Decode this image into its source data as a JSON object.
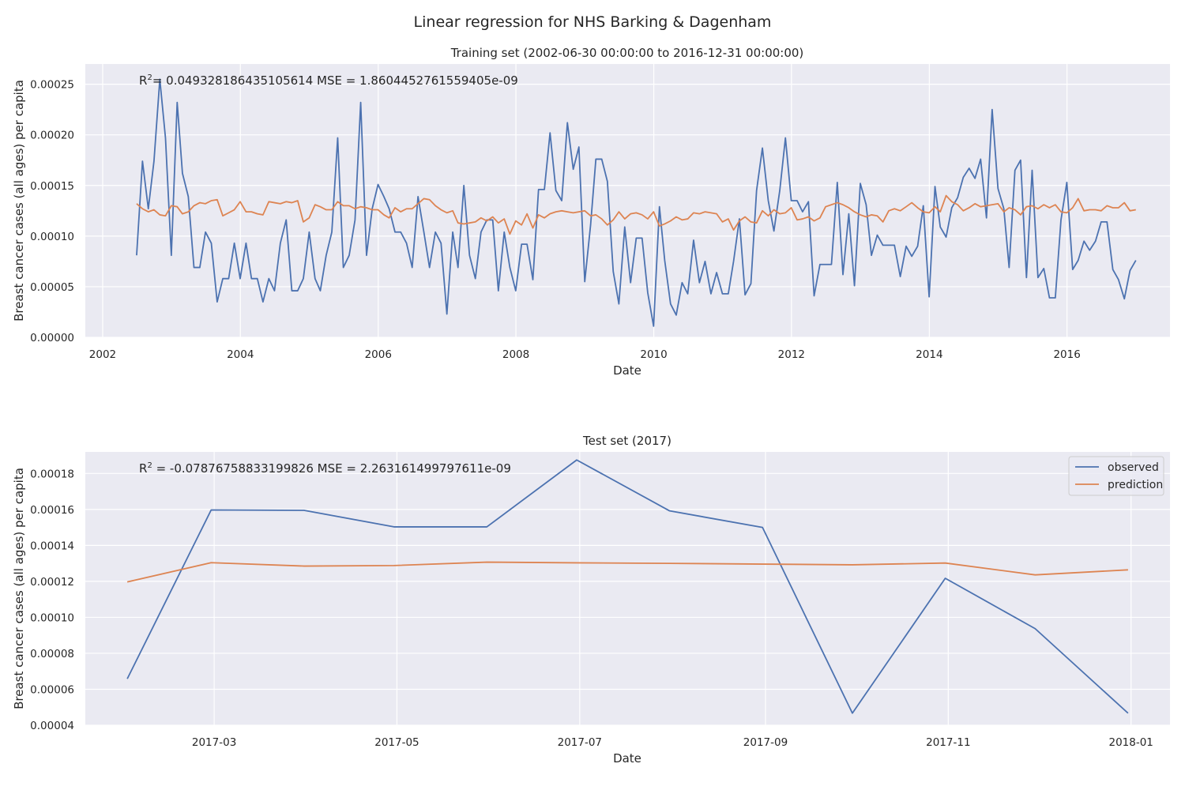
{
  "figure": {
    "suptitle": "Linear regression for NHS Barking & Dagenham"
  },
  "colors": {
    "observed": "#4c72b0",
    "prediction": "#dd8452",
    "axes_bg": "#eaeaf2",
    "grid": "#ffffff"
  },
  "chart_data": [
    {
      "type": "line",
      "title": "Training set (2002-06-30 00:00:00 to 2016-12-31 00:00:00)",
      "xlabel": "Date",
      "ylabel": "Breast cancer cases (all ages) per capita",
      "x_type": "date",
      "xlim": [
        "2001-10-01",
        "2017-06-30"
      ],
      "ylim": [
        0,
        0.00027
      ],
      "x_ticks": [
        "2002-01-01",
        "2004-01-01",
        "2006-01-01",
        "2008-01-01",
        "2010-01-01",
        "2012-01-01",
        "2014-01-01",
        "2016-01-01"
      ],
      "x_tick_labels": [
        "2002",
        "2004",
        "2006",
        "2008",
        "2010",
        "2012",
        "2014",
        "2016"
      ],
      "y_ticks": [
        0,
        5e-05,
        0.0001,
        0.00015,
        0.0002,
        0.00025
      ],
      "y_tick_labels": [
        "0.00000",
        "0.00005",
        "0.00010",
        "0.00015",
        "0.00020",
        "0.00025"
      ],
      "grid": true,
      "legend": "none",
      "annotation": {
        "r_label": "R",
        "r_sup": "2",
        "text": "= 0.049328186435105614  MSE = 1.8604452761559405e-09"
      },
      "start": "2002-06-30",
      "frequency": "monthly",
      "series": [
        {
          "name": "observed",
          "values": [
            8.1e-05,
            0.000174,
            0.000127,
            0.000174,
            0.000255,
            0.000197,
            8.1e-05,
            0.000232,
            0.000162,
            0.000139,
            6.9e-05,
            6.9e-05,
            0.000104,
            9.3e-05,
            3.5e-05,
            5.8e-05,
            5.8e-05,
            9.3e-05,
            5.8e-05,
            9.3e-05,
            5.8e-05,
            5.8e-05,
            3.5e-05,
            5.8e-05,
            4.6e-05,
            9.3e-05,
            0.000116,
            4.6e-05,
            4.6e-05,
            5.8e-05,
            0.000104,
            5.8e-05,
            4.6e-05,
            8.1e-05,
            0.000104,
            0.000197,
            6.9e-05,
            8.1e-05,
            0.000116,
            0.000232,
            8.1e-05,
            0.000127,
            0.000151,
            0.000139,
            0.000127,
            0.000104,
            0.000104,
            9.3e-05,
            6.9e-05,
            0.000139,
            0.000104,
            6.9e-05,
            0.000104,
            9.3e-05,
            2.3e-05,
            0.000104,
            6.9e-05,
            0.00015,
            8.1e-05,
            5.8e-05,
            0.000104,
            0.000116,
            0.000116,
            4.6e-05,
            0.000104,
            6.9e-05,
            4.6e-05,
            9.2e-05,
            9.2e-05,
            5.7e-05,
            0.000146,
            0.000146,
            0.000202,
            0.000145,
            0.000135,
            0.000212,
            0.000166,
            0.000188,
            5.5e-05,
            0.000111,
            0.000176,
            0.000176,
            0.000154,
            6.5e-05,
            3.3e-05,
            0.000109,
            5.4e-05,
            9.8e-05,
            9.8e-05,
            4.4e-05,
            1.1e-05,
            0.000129,
            7.6e-05,
            3.3e-05,
            2.2e-05,
            5.4e-05,
            4.3e-05,
            9.6e-05,
            5.4e-05,
            7.5e-05,
            4.3e-05,
            6.4e-05,
            4.3e-05,
            4.3e-05,
            7.5e-05,
            0.000117,
            4.2e-05,
            5.3e-05,
            0.000145,
            0.000187,
            0.000135,
            0.000105,
            0.000145,
            0.000197,
            0.000135,
            0.000135,
            0.000124,
            0.000134,
            4.1e-05,
            7.2e-05,
            7.2e-05,
            7.2e-05,
            0.000153,
            6.2e-05,
            0.000122,
            5.1e-05,
            0.000152,
            0.000131,
            8.1e-05,
            0.000101,
            9.1e-05,
            9.1e-05,
            9.1e-05,
            6e-05,
            9e-05,
            8e-05,
            9e-05,
            0.00013,
            4e-05,
            0.000149,
            0.000109,
            9.9e-05,
            0.000128,
            0.000138,
            0.000158,
            0.000167,
            0.000157,
            0.000176,
            0.000118,
            0.000225,
            0.000147,
            0.000127,
            6.9e-05,
            0.000165,
            0.000175,
            5.9e-05,
            0.000165,
            5.9e-05,
            6.8e-05,
            3.9e-05,
            3.9e-05,
            0.000116,
            0.000153,
            6.7e-05,
            7.6e-05,
            9.5e-05,
            8.6e-05,
            9.5e-05,
            0.000114,
            0.000114,
            6.7e-05,
            5.7e-05,
            3.8e-05,
            6.6e-05,
            7.6e-05
          ]
        },
        {
          "name": "prediction",
          "values": [
            0.000132,
            0.000127,
            0.000124,
            0.000126,
            0.000121,
            0.00012,
            0.00013,
            0.000129,
            0.000122,
            0.000124,
            0.00013,
            0.000133,
            0.000132,
            0.000135,
            0.000136,
            0.00012,
            0.000123,
            0.000126,
            0.000134,
            0.000124,
            0.000124,
            0.000122,
            0.000121,
            0.000134,
            0.000133,
            0.000132,
            0.000134,
            0.000133,
            0.000135,
            0.000114,
            0.000118,
            0.000131,
            0.000129,
            0.000126,
            0.000126,
            0.000134,
            0.00013,
            0.00013,
            0.000127,
            0.000129,
            0.000128,
            0.000126,
            0.000126,
            0.000121,
            0.000118,
            0.000128,
            0.000124,
            0.000127,
            0.000127,
            0.000132,
            0.000137,
            0.000136,
            0.00013,
            0.000126,
            0.000123,
            0.000125,
            0.000113,
            0.000112,
            0.000113,
            0.000114,
            0.000118,
            0.000115,
            0.000119,
            0.000113,
            0.000117,
            0.000102,
            0.000115,
            0.000111,
            0.000122,
            0.000108,
            0.000121,
            0.000118,
            0.000122,
            0.000124,
            0.000125,
            0.000124,
            0.000123,
            0.000124,
            0.000125,
            0.00012,
            0.000121,
            0.000117,
            0.000111,
            0.000116,
            0.000124,
            0.000117,
            0.000122,
            0.000123,
            0.000121,
            0.000117,
            0.000124,
            0.00011,
            0.000112,
            0.000115,
            0.000119,
            0.000116,
            0.000117,
            0.000123,
            0.000122,
            0.000124,
            0.000123,
            0.000122,
            0.000114,
            0.000117,
            0.000106,
            0.000115,
            0.000119,
            0.000114,
            0.000113,
            0.000125,
            0.00012,
            0.000126,
            0.000122,
            0.000123,
            0.000128,
            0.000116,
            0.000117,
            0.000119,
            0.000115,
            0.000118,
            0.000129,
            0.000131,
            0.000133,
            0.000131,
            0.000128,
            0.000124,
            0.000121,
            0.000119,
            0.000121,
            0.00012,
            0.000114,
            0.000125,
            0.000127,
            0.000125,
            0.000129,
            0.000133,
            0.000128,
            0.000124,
            0.000123,
            0.000129,
            0.000124,
            0.00014,
            0.000134,
            0.000131,
            0.000125,
            0.000128,
            0.000132,
            0.000129,
            0.00013,
            0.000131,
            0.000132,
            0.000124,
            0.000128,
            0.000126,
            0.000121,
            0.000129,
            0.00013,
            0.000127,
            0.000131,
            0.000128,
            0.000131,
            0.000124,
            0.000123,
            0.000128,
            0.000137,
            0.000125,
            0.000126,
            0.000126,
            0.000125,
            0.00013,
            0.000128,
            0.000128,
            0.000133,
            0.000125,
            0.000126,
            0.000128,
            0.000127
          ]
        }
      ]
    },
    {
      "type": "line",
      "title": "Test set (2017)",
      "xlabel": "Date",
      "ylabel": "Breast cancer cases (all ages) per capita",
      "x_type": "date",
      "xlim": [
        "2017-01-17",
        "2018-01-14"
      ],
      "ylim": [
        4e-05,
        0.000192
      ],
      "x_ticks": [
        "2017-03-01",
        "2017-05-01",
        "2017-07-01",
        "2017-09-01",
        "2017-11-01",
        "2018-01-01"
      ],
      "x_tick_labels": [
        "2017-03",
        "2017-05",
        "2017-07",
        "2017-09",
        "2017-11",
        "2018-01"
      ],
      "y_ticks": [
        4e-05,
        6e-05,
        8e-05,
        0.0001,
        0.00012,
        0.00014,
        0.00016,
        0.00018
      ],
      "y_tick_labels": [
        "0.00004",
        "0.00006",
        "0.00008",
        "0.00010",
        "0.00012",
        "0.00014",
        "0.00016",
        "0.00018"
      ],
      "grid": true,
      "legend": "top-right",
      "annotation": {
        "r_label": "R",
        "r_sup": "2",
        "text": " = -0.07876758833199826  MSE = 2.263161499797611e-09"
      },
      "x": [
        "2017-01-31",
        "2017-02-28",
        "2017-03-31",
        "2017-04-30",
        "2017-05-31",
        "2017-06-30",
        "2017-07-31",
        "2017-08-31",
        "2017-09-30",
        "2017-10-31",
        "2017-11-30",
        "2017-12-31"
      ],
      "series": [
        {
          "name": "observed",
          "values": [
            6.58e-05,
            0.0001597,
            0.0001595,
            0.0001503,
            0.0001503,
            0.0001875,
            0.0001592,
            0.00015,
            4.67e-05,
            0.0001217,
            9.37e-05,
            4.67e-05
          ]
        },
        {
          "name": "prediction",
          "values": [
            0.0001197,
            0.0001304,
            0.0001285,
            0.0001288,
            0.0001307,
            0.0001303,
            0.00013,
            0.0001296,
            0.0001292,
            0.0001302,
            0.0001236,
            0.0001264
          ]
        }
      ]
    }
  ]
}
